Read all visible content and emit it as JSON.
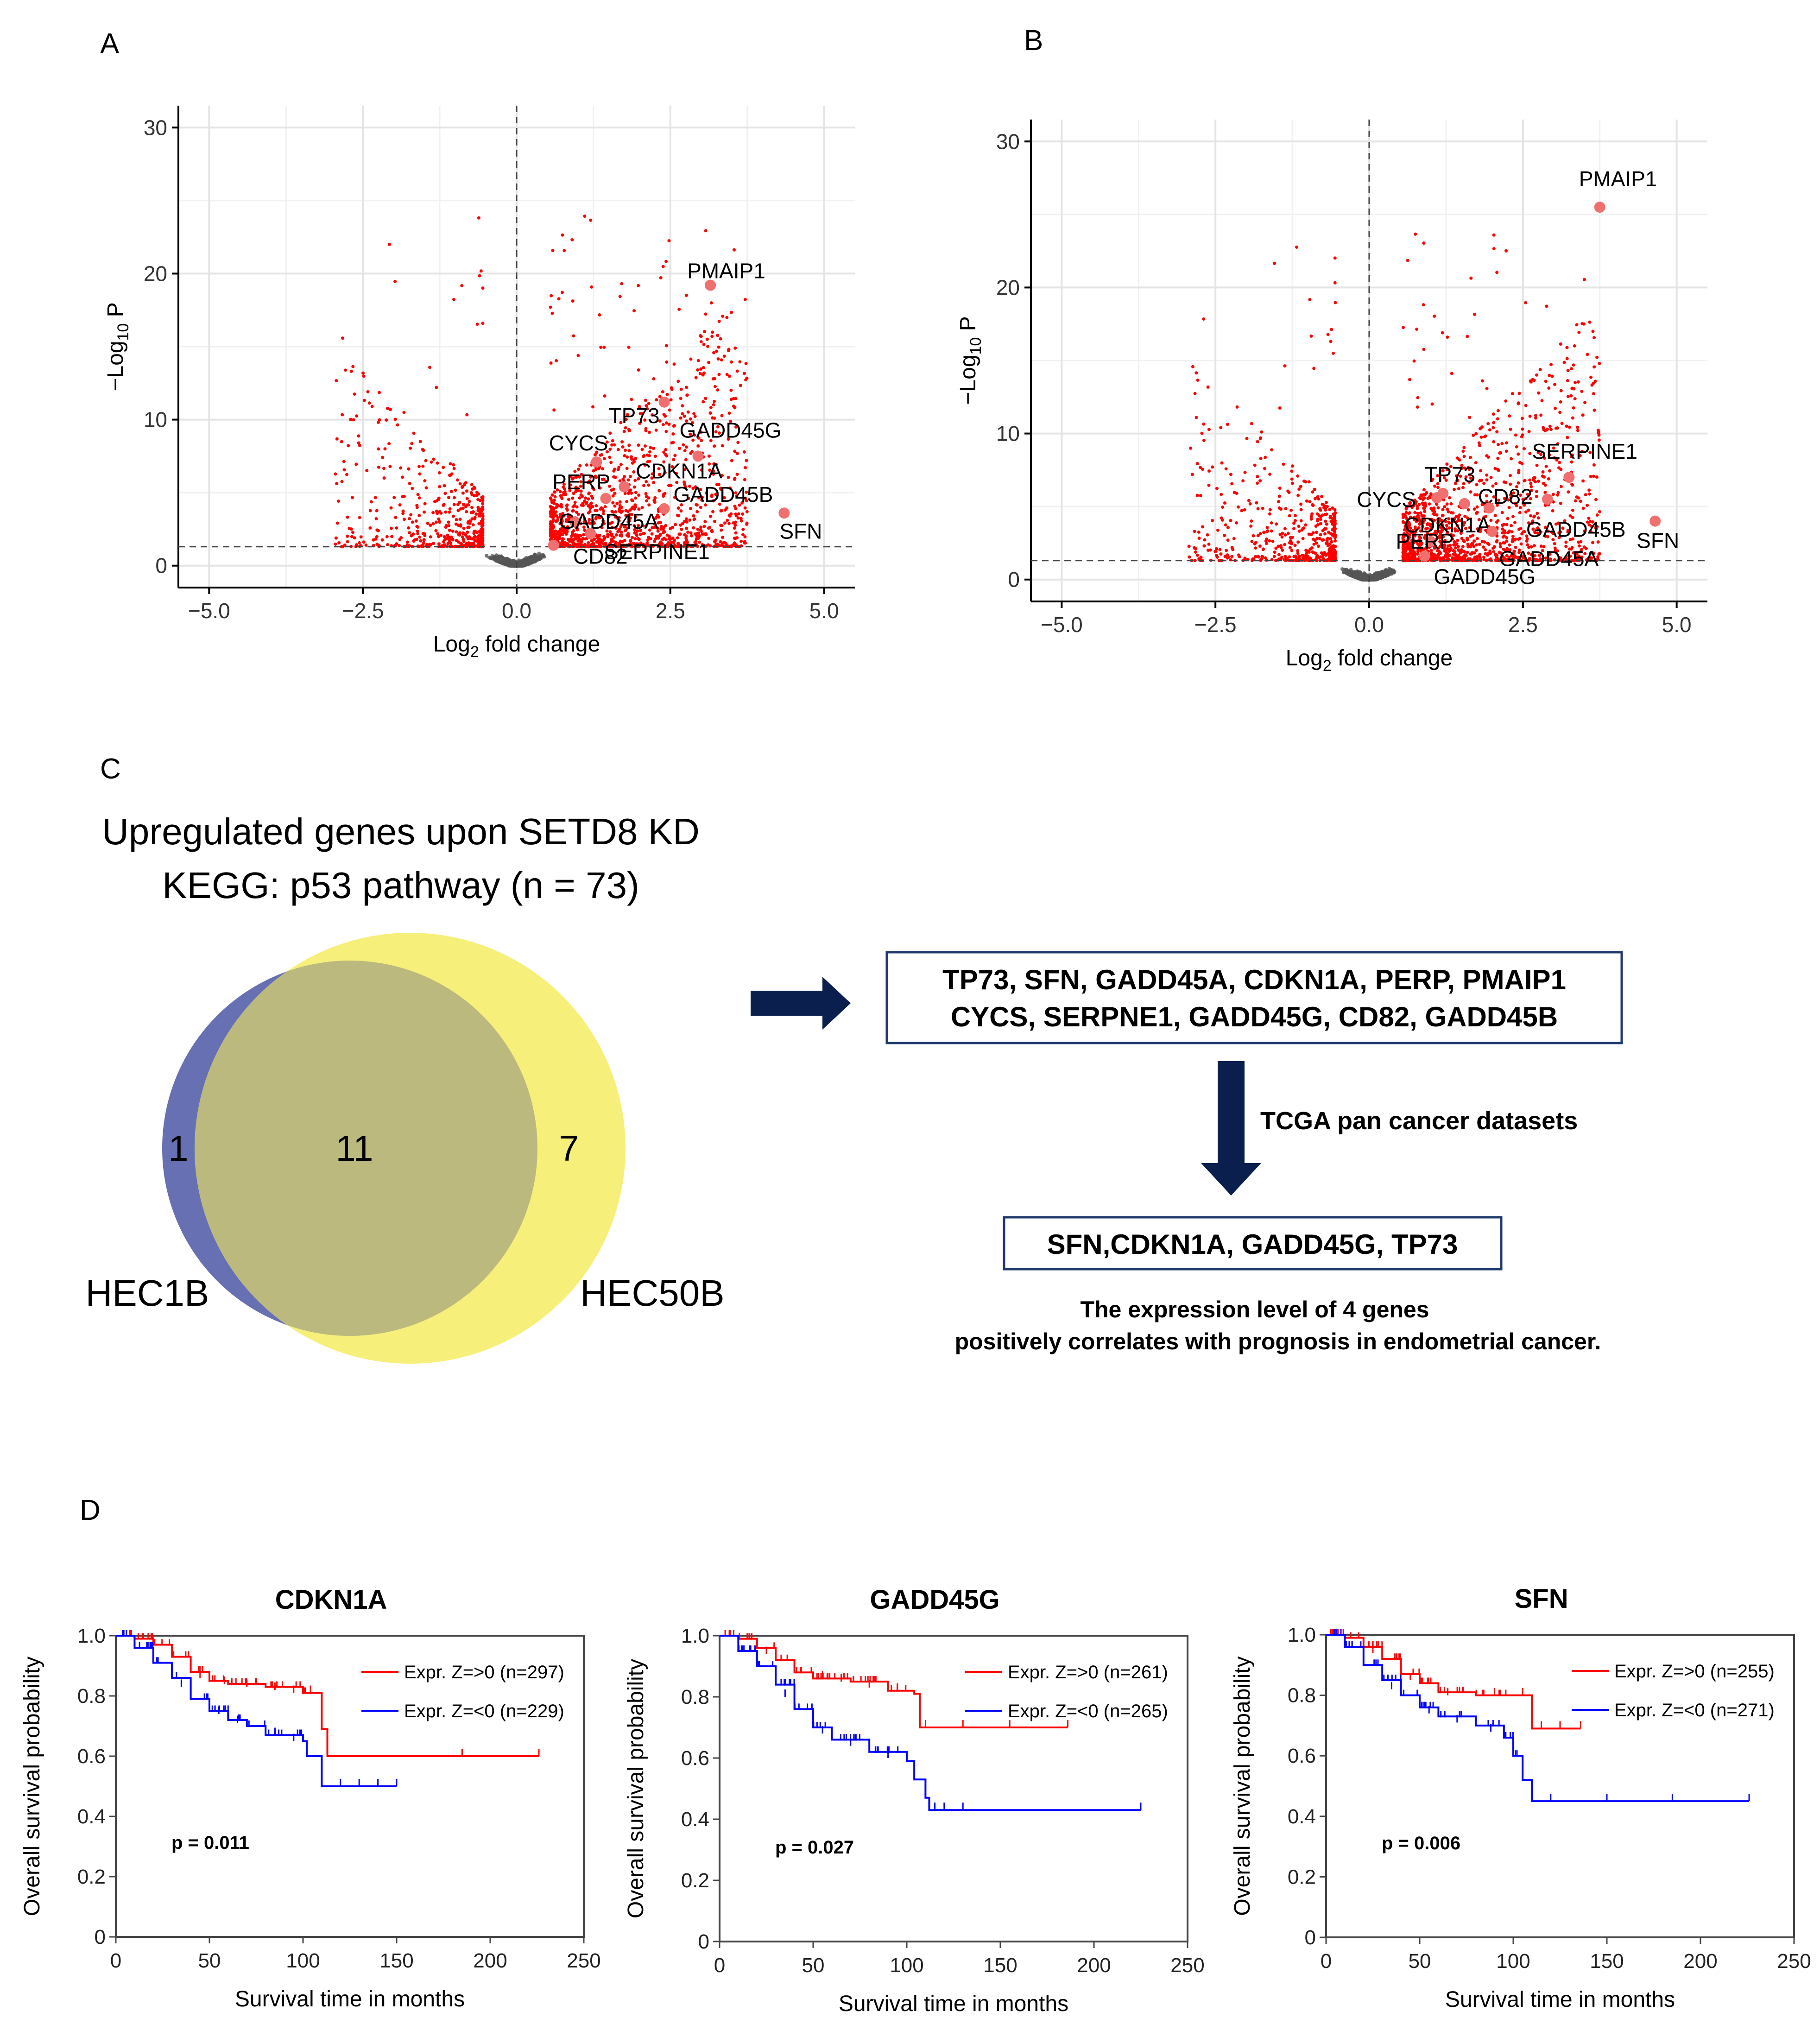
{
  "panels": {
    "A": "A",
    "B": "B",
    "C": "C",
    "D": "D"
  },
  "chart_data": [
    {
      "id": "A",
      "type": "scatter",
      "title": "",
      "xlabel": "Log2 fold change",
      "ylabel": "−Log10 P",
      "xlim": [
        -5.5,
        5.5
      ],
      "ylim": [
        -1.5,
        31.5
      ],
      "xticks": [
        -5,
        -2.5,
        0,
        2.5,
        5
      ],
      "xtick_labels": [
        "−5.0",
        "−2.5",
        "0.0",
        "2.5",
        "5.0"
      ],
      "yticks": [
        0,
        10,
        20,
        30
      ],
      "ytick_labels": [
        "0",
        "10",
        "20",
        "30"
      ],
      "p_threshold_neglog10": 1.3,
      "fc_threshold": 0,
      "highlighted": [
        {
          "gene": "PMAIP1",
          "x": 3.15,
          "y": 19.2
        },
        {
          "gene": "TP73",
          "x": 2.4,
          "y": 11.2
        },
        {
          "gene": "GADD45G",
          "x": 2.95,
          "y": 7.5
        },
        {
          "gene": "CYCS",
          "x": 1.3,
          "y": 7.1
        },
        {
          "gene": "CDKN1A",
          "x": 1.75,
          "y": 5.4
        },
        {
          "gene": "PERP",
          "x": 1.45,
          "y": 4.6
        },
        {
          "gene": "GADD45B",
          "x": 2.4,
          "y": 3.9
        },
        {
          "gene": "SFN",
          "x": 4.35,
          "y": 3.6
        },
        {
          "gene": "GADD45A",
          "x": 0.95,
          "y": 3.0
        },
        {
          "gene": "SERPINE1",
          "x": 1.2,
          "y": 2.2
        },
        {
          "gene": "CD82",
          "x": 0.6,
          "y": 1.4
        }
      ]
    },
    {
      "id": "B",
      "type": "scatter",
      "title": "",
      "xlabel": "Log2 fold change",
      "ylabel": "−Log10 P",
      "xlim": [
        -5.5,
        5.5
      ],
      "ylim": [
        -1.5,
        31.5
      ],
      "xticks": [
        -5,
        -2.5,
        0,
        2.5,
        5
      ],
      "xtick_labels": [
        "−5.0",
        "−2.5",
        "0.0",
        "2.5",
        "5.0"
      ],
      "yticks": [
        0,
        10,
        20,
        30
      ],
      "ytick_labels": [
        "0",
        "10",
        "20",
        "30"
      ],
      "p_threshold_neglog10": 1.3,
      "fc_threshold": 0,
      "highlighted": [
        {
          "gene": "PMAIP1",
          "x": 3.75,
          "y": 25.5
        },
        {
          "gene": "SERPINE1",
          "x": 3.25,
          "y": 7.0
        },
        {
          "gene": "TP73",
          "x": 1.2,
          "y": 5.9
        },
        {
          "gene": "CD82",
          "x": 2.9,
          "y": 5.5
        },
        {
          "gene": "CYCS",
          "x": 1.1,
          "y": 5.6
        },
        {
          "gene": "CDKN1A",
          "x": 1.55,
          "y": 5.2
        },
        {
          "gene": "GADD45B",
          "x": 1.95,
          "y": 4.9
        },
        {
          "gene": "SFN",
          "x": 4.65,
          "y": 4.0
        },
        {
          "gene": "GADD45A",
          "x": 2.0,
          "y": 3.3
        },
        {
          "gene": "PERP",
          "x": 1.0,
          "y": 2.6
        },
        {
          "gene": "GADD45G",
          "x": 0.9,
          "y": 1.6
        }
      ]
    },
    {
      "id": "D1",
      "type": "line",
      "title": "CDKN1A",
      "xlabel": "Survival time in months",
      "ylabel": "Overall survival probability",
      "xlim": [
        0,
        250
      ],
      "ylim": [
        0,
        1.0
      ],
      "xticks": [
        0,
        50,
        100,
        150,
        200,
        250
      ],
      "yticks": [
        0,
        0.2,
        0.4,
        0.6,
        0.8,
        1.0
      ],
      "ytick_labels": [
        "0",
        "0.2",
        "0.4",
        "0.6",
        "0.8",
        "1.0"
      ],
      "p_label": "p = 0.011",
      "series": [
        {
          "name": "Expr. Z=>0 (n=297)",
          "color": "#ff0000",
          "points": [
            [
              0,
              1.0
            ],
            [
              10,
              0.99
            ],
            [
              20,
              0.97
            ],
            [
              30,
              0.93
            ],
            [
              40,
              0.88
            ],
            [
              50,
              0.85
            ],
            [
              60,
              0.84
            ],
            [
              80,
              0.83
            ],
            [
              100,
              0.81
            ],
            [
              106,
              0.81
            ],
            [
              110,
              0.69
            ],
            [
              113,
              0.6
            ],
            [
              226,
              0.6
            ]
          ],
          "censors": [
            [
              20,
              0.97
            ],
            [
              45,
              0.86
            ],
            [
              58,
              0.84
            ],
            [
              70,
              0.83
            ],
            [
              85,
              0.82
            ],
            [
              95,
              0.81
            ],
            [
              104,
              0.81
            ],
            [
              185,
              0.6
            ],
            [
              226,
              0.6
            ]
          ]
        },
        {
          "name": "Expr. Z=<0 (n=229)",
          "color": "#0000ff",
          "points": [
            [
              0,
              1.0
            ],
            [
              10,
              0.96
            ],
            [
              20,
              0.91
            ],
            [
              30,
              0.86
            ],
            [
              40,
              0.79
            ],
            [
              50,
              0.75
            ],
            [
              60,
              0.72
            ],
            [
              70,
              0.7
            ],
            [
              80,
              0.67
            ],
            [
              100,
              0.65
            ],
            [
              102,
              0.6
            ],
            [
              110,
              0.5
            ],
            [
              150,
              0.5
            ]
          ],
          "censors": [
            [
              35,
              0.83
            ],
            [
              55,
              0.74
            ],
            [
              65,
              0.71
            ],
            [
              85,
              0.67
            ],
            [
              95,
              0.65
            ],
            [
              120,
              0.5
            ],
            [
              130,
              0.5
            ],
            [
              140,
              0.5
            ],
            [
              150,
              0.5
            ]
          ]
        }
      ]
    },
    {
      "id": "D2",
      "type": "line",
      "title": "GADD45G",
      "xlabel": "Survival time in months",
      "ylabel": "Overall survival probability",
      "xlim": [
        0,
        250
      ],
      "ylim": [
        0,
        1.0
      ],
      "xticks": [
        0,
        50,
        100,
        150,
        200,
        250
      ],
      "yticks": [
        0,
        0.2,
        0.4,
        0.6,
        0.8,
        1.0
      ],
      "ytick_labels": [
        "0",
        "0.2",
        "0.4",
        "0.6",
        "0.8",
        "1.0"
      ],
      "p_label": "p = 0.027",
      "series": [
        {
          "name": "Expr. Z=>0 (n=261)",
          "color": "#ff0000",
          "points": [
            [
              0,
              1.0
            ],
            [
              10,
              0.99
            ],
            [
              20,
              0.96
            ],
            [
              30,
              0.92
            ],
            [
              40,
              0.88
            ],
            [
              50,
              0.86
            ],
            [
              70,
              0.85
            ],
            [
              90,
              0.82
            ],
            [
              104,
              0.81
            ],
            [
              107,
              0.7
            ],
            [
              186,
              0.7
            ]
          ],
          "censors": [
            [
              25,
              0.94
            ],
            [
              55,
              0.86
            ],
            [
              65,
              0.85
            ],
            [
              80,
              0.83
            ],
            [
              95,
              0.82
            ],
            [
              110,
              0.7
            ],
            [
              130,
              0.7
            ],
            [
              155,
              0.7
            ],
            [
              186,
              0.7
            ]
          ]
        },
        {
          "name": "Expr. Z=<0 (n=265)",
          "color": "#0000ff",
          "points": [
            [
              0,
              1.0
            ],
            [
              10,
              0.95
            ],
            [
              20,
              0.9
            ],
            [
              30,
              0.84
            ],
            [
              40,
              0.76
            ],
            [
              50,
              0.7
            ],
            [
              60,
              0.66
            ],
            [
              80,
              0.62
            ],
            [
              100,
              0.59
            ],
            [
              104,
              0.53
            ],
            [
              110,
              0.47
            ],
            [
              112,
              0.43
            ],
            [
              225,
              0.43
            ]
          ],
          "censors": [
            [
              35,
              0.8
            ],
            [
              55,
              0.68
            ],
            [
              70,
              0.64
            ],
            [
              90,
              0.6
            ],
            [
              115,
              0.43
            ],
            [
              120,
              0.43
            ],
            [
              130,
              0.43
            ],
            [
              225,
              0.43
            ]
          ]
        }
      ]
    },
    {
      "id": "D3",
      "type": "line",
      "title": "SFN",
      "xlabel": "Survival time in months",
      "ylabel": "Overall survival probability",
      "xlim": [
        0,
        250
      ],
      "ylim": [
        0,
        1.0
      ],
      "xticks": [
        0,
        50,
        100,
        150,
        200,
        250
      ],
      "yticks": [
        0,
        0.2,
        0.4,
        0.6,
        0.8,
        1.0
      ],
      "ytick_labels": [
        "0",
        "0.2",
        "0.4",
        "0.6",
        "0.8",
        "1.0"
      ],
      "p_label": "p = 0.006",
      "series": [
        {
          "name": "Expr. Z=>0 (n=255)",
          "color": "#ff0000",
          "points": [
            [
              0,
              1.0
            ],
            [
              10,
              0.99
            ],
            [
              20,
              0.96
            ],
            [
              30,
              0.92
            ],
            [
              40,
              0.87
            ],
            [
              50,
              0.84
            ],
            [
              60,
              0.81
            ],
            [
              80,
              0.8
            ],
            [
              108,
              0.8
            ],
            [
              110,
              0.69
            ],
            [
              136,
              0.69
            ]
          ],
          "censors": [
            [
              25,
              0.94
            ],
            [
              45,
              0.85
            ],
            [
              65,
              0.8
            ],
            [
              90,
              0.8
            ],
            [
              105,
              0.8
            ],
            [
              115,
              0.69
            ],
            [
              125,
              0.69
            ],
            [
              136,
              0.69
            ]
          ]
        },
        {
          "name": "Expr. Z=<0 (n=271)",
          "color": "#0000ff",
          "points": [
            [
              0,
              1.0
            ],
            [
              10,
              0.96
            ],
            [
              20,
              0.9
            ],
            [
              30,
              0.85
            ],
            [
              40,
              0.8
            ],
            [
              50,
              0.76
            ],
            [
              60,
              0.73
            ],
            [
              80,
              0.7
            ],
            [
              95,
              0.66
            ],
            [
              100,
              0.6
            ],
            [
              105,
              0.52
            ],
            [
              110,
              0.45
            ],
            [
              226,
              0.45
            ]
          ],
          "censors": [
            [
              35,
              0.82
            ],
            [
              55,
              0.74
            ],
            [
              70,
              0.71
            ],
            [
              88,
              0.68
            ],
            [
              120,
              0.45
            ],
            [
              150,
              0.45
            ],
            [
              185,
              0.45
            ],
            [
              226,
              0.45
            ]
          ]
        }
      ]
    }
  ],
  "venn": {
    "title_line1": "Upregulated genes upon SETD8 KD",
    "title_line2": "KEGG: p53 pathway (n = 73)",
    "left_only": "1",
    "overlap": "11",
    "right_only": "7",
    "left_label": "HEC1B",
    "right_label": "HEC50B",
    "left_color": "#6670b3",
    "right_color": "#f6ef7a",
    "overlap_color": "#bbb97e"
  },
  "flow": {
    "box1_line1": "TP73,  SFN,  GADD45A,  CDKN1A,  PERP,  PMAIP1",
    "box1_line2": "CYCS,  SERPNE1,  GADD45G,  CD82,  GADD45B",
    "step_label": "TCGA pan cancer datasets",
    "box2": "SFN,CDKN1A,  GADD45G,  TP73",
    "conclusion_line1": "The expression level of 4 genes",
    "conclusion_line2": "positively correlates with prognosis in endometrial cancer.",
    "arrow_color": "#0b1f4f",
    "box_border_color": "#1f3a6e"
  }
}
